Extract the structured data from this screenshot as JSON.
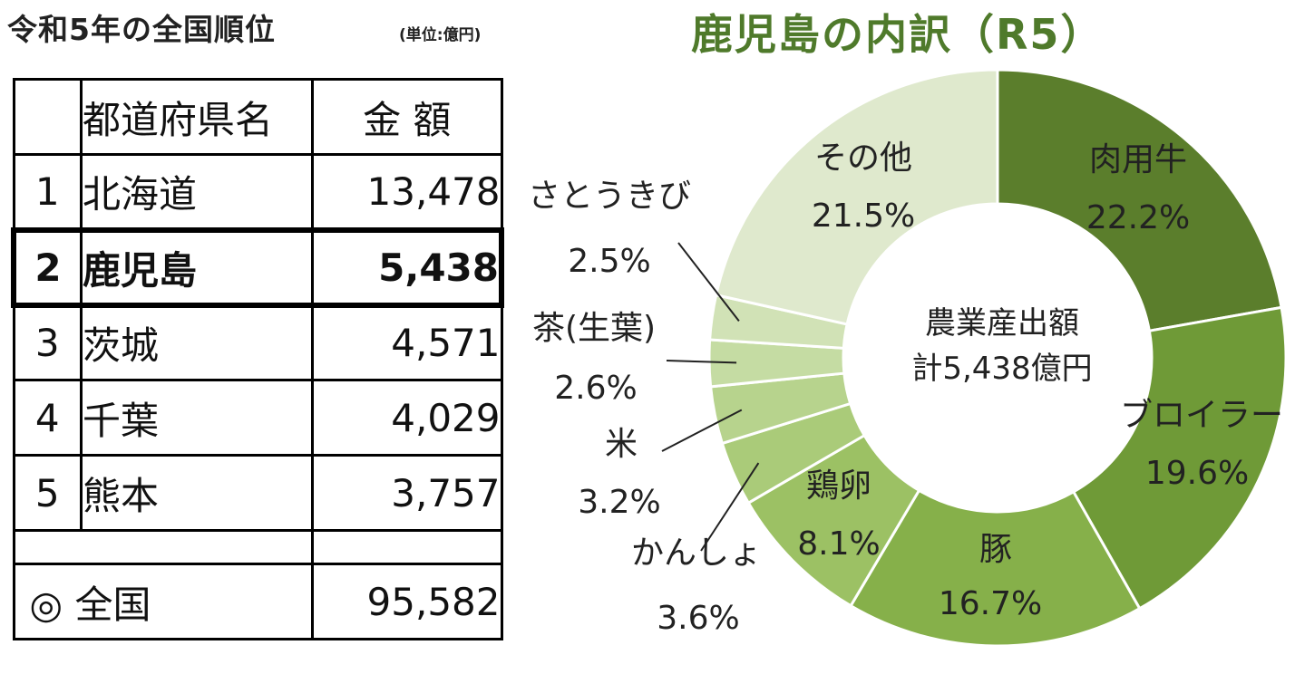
{
  "left": {
    "title": "令和5年の全国順位",
    "unit": "(単位:億円)",
    "headers": {
      "no": "",
      "name": "都道府県名",
      "amount": "金 額"
    },
    "rows": [
      {
        "no": "1",
        "name": "北海道",
        "amount": "13,478"
      },
      {
        "no": "2",
        "name": "鹿児島",
        "amount": "5,438"
      },
      {
        "no": "3",
        "name": "茨城",
        "amount": "4,571"
      },
      {
        "no": "4",
        "name": "千葉",
        "amount": "4,029"
      },
      {
        "no": "5",
        "name": "熊本",
        "amount": "3,757"
      }
    ],
    "total": {
      "label": "◎ 全国",
      "amount": "95,582"
    }
  },
  "chart_data": {
    "type": "pie",
    "title": "鹿児島の内訳（R5）",
    "center_label": [
      "農業産出額",
      "計5,438億円"
    ],
    "slices": [
      {
        "name": "肉用牛",
        "value": 22.2,
        "pct": "22.2%",
        "color": "#5b7e2c"
      },
      {
        "name": "ブロイラー",
        "value": 19.6,
        "pct": "19.6%",
        "color": "#6f9a37"
      },
      {
        "name": "豚",
        "value": 16.7,
        "pct": "16.7%",
        "color": "#86b04a"
      },
      {
        "name": "鶏卵",
        "value": 8.1,
        "pct": "8.1%",
        "color": "#9cc164"
      },
      {
        "name": "かんしょ",
        "value": 3.6,
        "pct": "3.6%",
        "color": "#aacb79"
      },
      {
        "name": "米",
        "value": 3.2,
        "pct": "3.2%",
        "color": "#b7d38d"
      },
      {
        "name": "茶(生葉)",
        "value": 2.6,
        "pct": "2.6%",
        "color": "#c5dca3"
      },
      {
        "name": "さとうきび",
        "value": 2.5,
        "pct": "2.5%",
        "color": "#d1e2b6"
      },
      {
        "name": "その他",
        "value": 21.5,
        "pct": "21.5%",
        "color": "#dfe9cd"
      }
    ],
    "legend": "none"
  }
}
